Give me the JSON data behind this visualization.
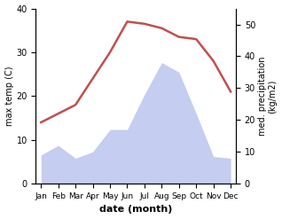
{
  "months": [
    "Jan",
    "Feb",
    "Mar",
    "Apr",
    "May",
    "Jun",
    "Jul",
    "Aug",
    "Sep",
    "Oct",
    "Nov",
    "Dec"
  ],
  "month_indices": [
    0,
    1,
    2,
    3,
    4,
    5,
    6,
    7,
    8,
    9,
    10,
    11
  ],
  "temp": [
    14,
    16,
    18,
    24,
    30,
    37,
    36.5,
    35.5,
    33.5,
    33,
    28,
    21
  ],
  "precip": [
    9,
    12,
    8,
    10,
    17,
    17,
    28,
    38,
    35,
    22,
    8.5,
    8
  ],
  "temp_color": "#c0504d",
  "precip_fill_color": "#c5cdf0",
  "xlabel": "date (month)",
  "ylabel_left": "max temp (C)",
  "ylabel_right": "med. precipitation\n(kg/m2)",
  "ylim_left": [
    0,
    40
  ],
  "ylim_right": [
    0,
    55
  ],
  "yticks_left": [
    0,
    10,
    20,
    30,
    40
  ],
  "yticks_right": [
    0,
    10,
    20,
    30,
    40,
    50
  ],
  "background_color": "#ffffff",
  "temp_linewidth": 1.8,
  "precip_scale": 0.7273
}
